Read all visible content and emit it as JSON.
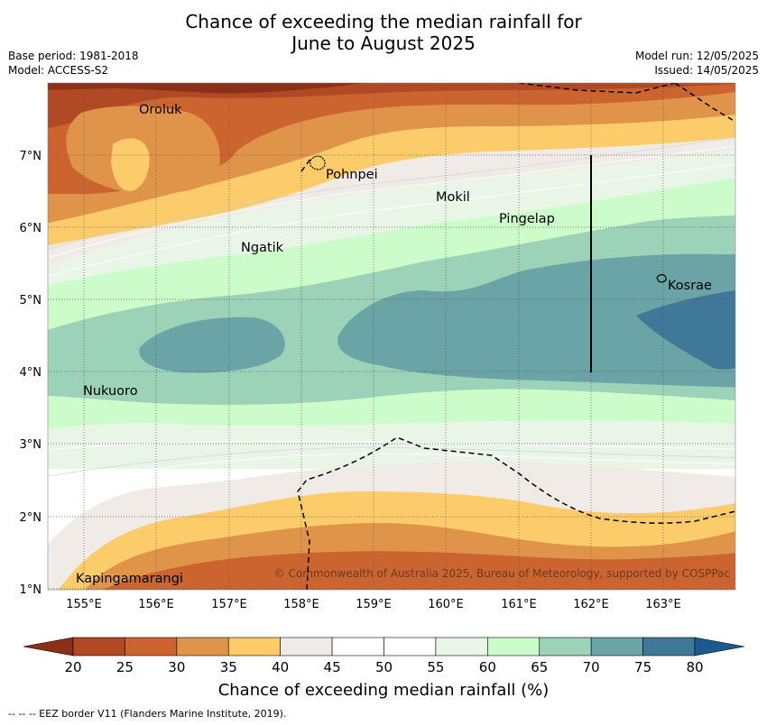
{
  "title_line1": "Chance of exceeding the median rainfall for",
  "title_line2": "June to August 2025",
  "meta": {
    "base_period": "Base period: 1981-2018",
    "model": "Model: ACCESS-S2",
    "model_run": "Model run: 12/05/2025",
    "issued": "Issued: 14/05/2025"
  },
  "axes": {
    "lon_ticks": [
      "155°E",
      "156°E",
      "157°E",
      "158°E",
      "159°E",
      "160°E",
      "161°E",
      "162°E",
      "163°E"
    ],
    "lat_ticks": [
      "7°N",
      "6°N",
      "5°N",
      "4°N",
      "3°N",
      "2°N",
      "1°N"
    ]
  },
  "places": [
    {
      "name": "Oroluk"
    },
    {
      "name": "Pohnpei"
    },
    {
      "name": "Mokil"
    },
    {
      "name": "Pingelap"
    },
    {
      "name": "Ngatik"
    },
    {
      "name": "Kosrae"
    },
    {
      "name": "Nukuoro"
    },
    {
      "name": "Kapingamarangi"
    }
  ],
  "copyright": "© Commonwealth of Australia 2025, Bureau of Meteorology, supported by COSPPac",
  "colorbar": {
    "title": "Chance of exceeding median rainfall (%)",
    "labels": [
      "20",
      "25",
      "30",
      "35",
      "40",
      "45",
      "50",
      "55",
      "60",
      "65",
      "70",
      "75",
      "80"
    ],
    "colors": [
      "#8b2f16",
      "#b14a24",
      "#cc6430",
      "#e0944a",
      "#fdcc6a",
      "#f0ebe6",
      "#ffffff",
      "#ffffff",
      "#e9f5e7",
      "#ccfcca",
      "#9cd2b8",
      "#6aa4a6",
      "#3f7898",
      "#1a5a8e"
    ]
  },
  "footnote": "-- -- -- EEZ border V11 (Flanders Marine Institute, 2019)."
}
